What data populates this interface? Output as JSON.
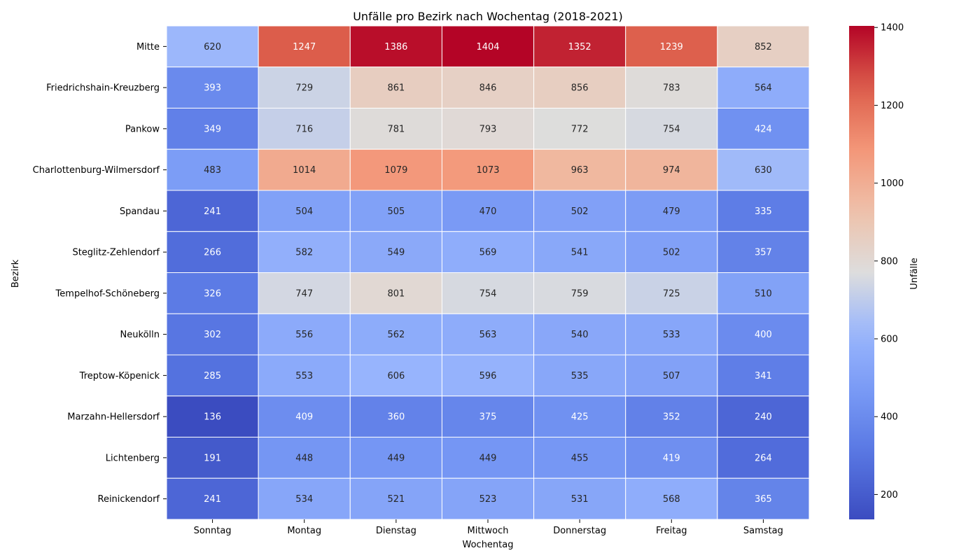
{
  "chart_data": {
    "type": "heatmap",
    "title": "Unfälle pro Bezirk nach Wochentag (2018-2021)",
    "xlabel": "Wochentag",
    "ylabel": "Bezirk",
    "x": [
      "Sonntag",
      "Montag",
      "Dienstag",
      "Mittwoch",
      "Donnerstag",
      "Freitag",
      "Samstag"
    ],
    "y": [
      "Mitte",
      "Friedrichshain-Kreuzberg",
      "Pankow",
      "Charlottenburg-Wilmersdorf",
      "Spandau",
      "Steglitz-Zehlendorf",
      "Tempelhof-Schöneberg",
      "Neukölln",
      "Treptow-Köpenick",
      "Marzahn-Hellersdorf",
      "Lichtenberg",
      "Reinickendorf"
    ],
    "values": [
      [
        620,
        1247,
        1386,
        1404,
        1352,
        1239,
        852
      ],
      [
        393,
        729,
        861,
        846,
        856,
        783,
        564
      ],
      [
        349,
        716,
        781,
        793,
        772,
        754,
        424
      ],
      [
        483,
        1014,
        1079,
        1073,
        963,
        974,
        630
      ],
      [
        241,
        504,
        505,
        470,
        502,
        479,
        335
      ],
      [
        266,
        582,
        549,
        569,
        541,
        502,
        357
      ],
      [
        326,
        747,
        801,
        754,
        759,
        725,
        510
      ],
      [
        302,
        556,
        562,
        563,
        540,
        533,
        400
      ],
      [
        285,
        553,
        606,
        596,
        535,
        507,
        341
      ],
      [
        136,
        409,
        360,
        375,
        425,
        352,
        240
      ],
      [
        191,
        448,
        449,
        449,
        455,
        419,
        264
      ],
      [
        241,
        534,
        521,
        523,
        531,
        568,
        365
      ]
    ],
    "colormap": "coolwarm",
    "vmin": 136,
    "vmax": 1404,
    "colorbar": {
      "label": "Unfälle",
      "ticks": [
        200,
        400,
        600,
        800,
        1000,
        1200,
        1400
      ]
    }
  }
}
